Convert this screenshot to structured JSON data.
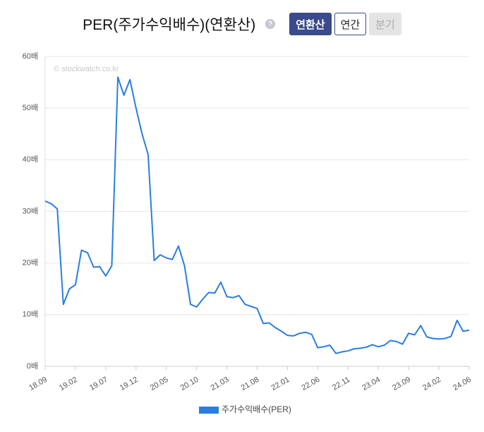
{
  "chart_data": {
    "type": "line",
    "title": "PER(주가수익배수)(연환산)",
    "help": "?",
    "buttons": [
      "연환산",
      "연간",
      "분기"
    ],
    "active_button": "연환산",
    "disabled_button": "분기",
    "watermark": "© stockwatch.co.kr",
    "categories": [
      "18.09",
      null,
      null,
      null,
      null,
      "19.02",
      null,
      null,
      null,
      null,
      "19.07",
      null,
      null,
      null,
      null,
      "19.12",
      null,
      null,
      null,
      null,
      "20.05",
      null,
      null,
      null,
      null,
      "20.10",
      null,
      null,
      null,
      null,
      "21.03",
      null,
      null,
      null,
      null,
      "21.08",
      null,
      null,
      null,
      null,
      "22.01",
      null,
      null,
      null,
      null,
      "22.06",
      null,
      null,
      null,
      null,
      "22.11",
      null,
      null,
      null,
      null,
      "23.04",
      null,
      null,
      null,
      null,
      "23.09",
      null,
      null,
      null,
      null,
      "24.02",
      null,
      null,
      null,
      null,
      "24.06"
    ],
    "series": [
      {
        "name": "주가수익배수(PER)",
        "color": "#2a7de1",
        "values": [
          32,
          31.5,
          30.5,
          12,
          15,
          15.8,
          22.5,
          22,
          19.2,
          19.3,
          17.5,
          19.5,
          56,
          52.5,
          55.5,
          50,
          45,
          41,
          20.5,
          21.6,
          21,
          20.7,
          23.3,
          19.5,
          12,
          11.5,
          13,
          14.3,
          14.2,
          16.3,
          13.5,
          13.3,
          13.7,
          12,
          11.6,
          11.2,
          8.3,
          8.4,
          7.5,
          6.8,
          6,
          5.9,
          6.4,
          6.6,
          6.2,
          3.6,
          3.8,
          4.1,
          2.5,
          2.8,
          3,
          3.4,
          3.5,
          3.7,
          4.2,
          3.8,
          4.1,
          5,
          4.8,
          4.3,
          6.4,
          6.1,
          7.9,
          5.7,
          5.4,
          5.3,
          5.4,
          5.8,
          8.9,
          6.8,
          7
        ]
      }
    ],
    "ylim": [
      0,
      60
    ],
    "yticks": [
      {
        "value": 0,
        "label": "0배"
      },
      {
        "value": 10,
        "label": "10배"
      },
      {
        "value": 20,
        "label": "20배"
      },
      {
        "value": 30,
        "label": "30배"
      },
      {
        "value": 40,
        "label": "40배"
      },
      {
        "value": 50,
        "label": "50배"
      },
      {
        "value": 60,
        "label": "60배"
      }
    ],
    "grid": true
  }
}
